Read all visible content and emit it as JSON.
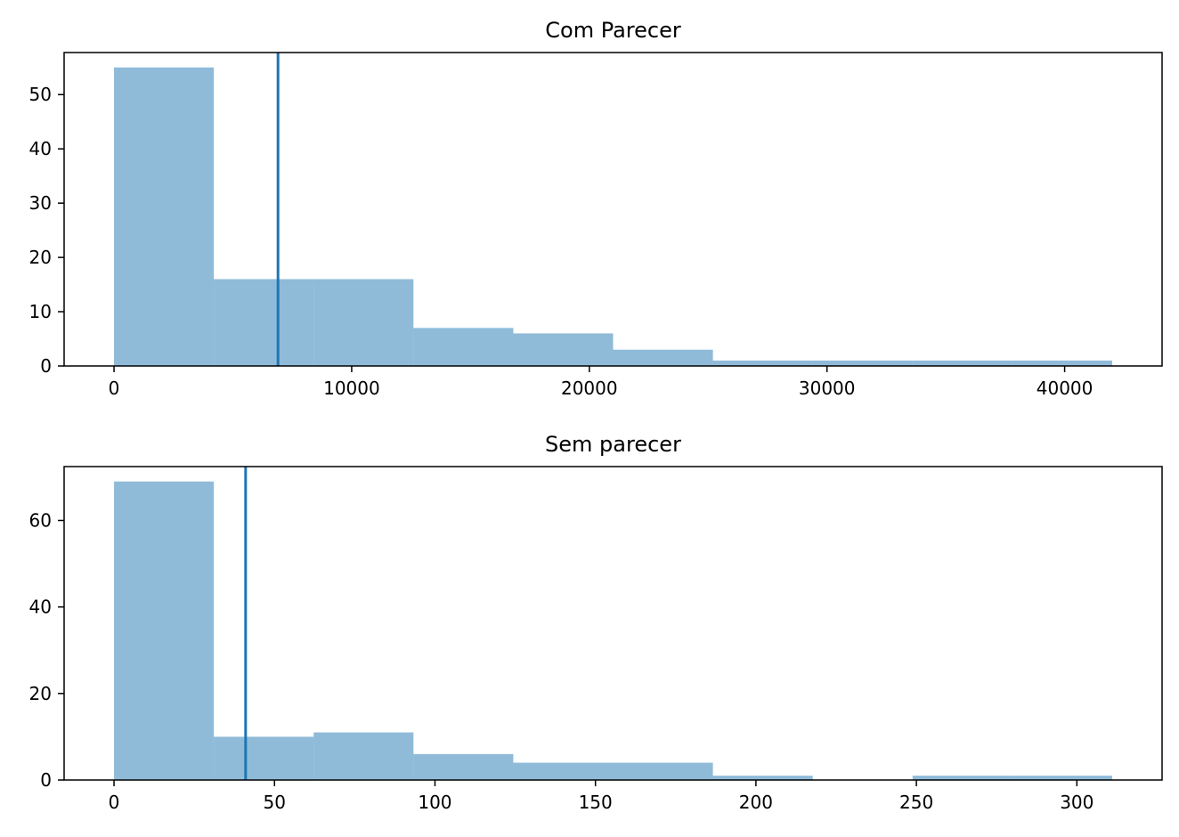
{
  "chart_data": [
    {
      "type": "histogram",
      "title": "Com Parecer",
      "xlabel": "",
      "ylabel": "",
      "bar_color": "#1f77b4",
      "bar_opacity": 0.5,
      "line_color": "#1f77b4",
      "bins": [
        {
          "x0": 0,
          "x1": 4200,
          "count": 55
        },
        {
          "x0": 4200,
          "x1": 8400,
          "count": 16
        },
        {
          "x0": 8400,
          "x1": 12600,
          "count": 16
        },
        {
          "x0": 12600,
          "x1": 16800,
          "count": 7
        },
        {
          "x0": 16800,
          "x1": 21000,
          "count": 6
        },
        {
          "x0": 21000,
          "x1": 25200,
          "count": 3
        },
        {
          "x0": 25200,
          "x1": 29400,
          "count": 1
        },
        {
          "x0": 29400,
          "x1": 33600,
          "count": 1
        },
        {
          "x0": 33600,
          "x1": 37800,
          "count": 1
        },
        {
          "x0": 37800,
          "x1": 42000,
          "count": 1
        }
      ],
      "vline": 6900,
      "xlim": [
        -2100,
        44100
      ],
      "ylim": [
        0,
        57.75
      ],
      "xticks": [
        0,
        10000,
        20000,
        30000,
        40000
      ],
      "yticks": [
        0,
        10,
        20,
        30,
        40,
        50
      ],
      "grid": false,
      "legend": "none"
    },
    {
      "type": "histogram",
      "title": "Sem parecer",
      "xlabel": "",
      "ylabel": "",
      "bar_color": "#1f77b4",
      "bar_opacity": 0.5,
      "line_color": "#1f77b4",
      "bins": [
        {
          "x0": 0,
          "x1": 31.1,
          "count": 69
        },
        {
          "x0": 31.1,
          "x1": 62.2,
          "count": 10
        },
        {
          "x0": 62.2,
          "x1": 93.3,
          "count": 11
        },
        {
          "x0": 93.3,
          "x1": 124.4,
          "count": 6
        },
        {
          "x0": 124.4,
          "x1": 155.5,
          "count": 4
        },
        {
          "x0": 155.5,
          "x1": 186.6,
          "count": 4
        },
        {
          "x0": 186.6,
          "x1": 217.7,
          "count": 1
        },
        {
          "x0": 217.7,
          "x1": 248.8,
          "count": 0
        },
        {
          "x0": 248.8,
          "x1": 279.9,
          "count": 1
        },
        {
          "x0": 279.9,
          "x1": 311,
          "count": 1
        }
      ],
      "vline": 41,
      "xlim": [
        -15.55,
        326.55
      ],
      "ylim": [
        0,
        72.45
      ],
      "xticks": [
        0,
        50,
        100,
        150,
        200,
        250,
        300
      ],
      "yticks": [
        0,
        20,
        40,
        60
      ],
      "grid": false,
      "legend": "none"
    }
  ]
}
